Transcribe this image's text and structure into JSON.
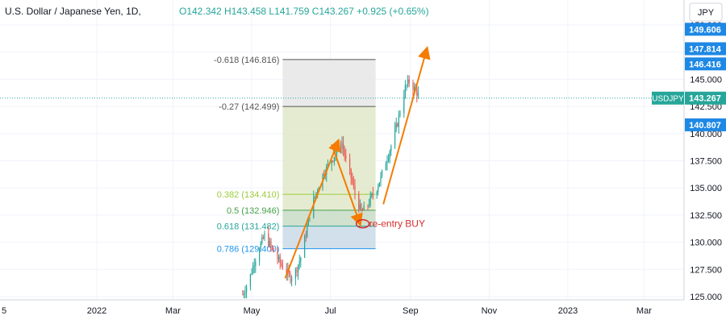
{
  "header": {
    "symbol_title": "U.S. Dollar / Japanese Yen, 1D,",
    "ohlc": "O142.342 H143.458 L141.759 C143.267 +0.925 (+0.65%)",
    "currency": "JPY"
  },
  "colors": {
    "up": "#26a69a",
    "down": "#ef5350",
    "arrow": "#f57c00",
    "fib_top_fill": "#e6e6e6",
    "fib_mid_fill": "#e0e8c8",
    "fib_low_fill": "#c8dcc6",
    "fib_bottom_fill": "#c9dbe6",
    "tag_blue": "#1e88e5",
    "tag_green": "#26a69a",
    "annotation_red": "#d32f2f"
  },
  "price_tags": [
    {
      "value": 149.606,
      "label": "149.606",
      "color": "#1e88e5"
    },
    {
      "value": 147.814,
      "label": "147.814",
      "color": "#1e88e5"
    },
    {
      "value": 146.416,
      "label": "146.416",
      "color": "#1e88e5"
    },
    {
      "value": 143.267,
      "label": "143.267",
      "color": "#26a69a",
      "badge": "USDJPY"
    },
    {
      "value": 140.807,
      "label": "140.807",
      "color": "#1e88e5"
    }
  ],
  "annotation": "re-entry BUY",
  "chart_data": {
    "type": "candlestick",
    "title": "U.S. Dollar / Japanese Yen, 1D,",
    "ylim": [
      124.7,
      152.3
    ],
    "y_ticks": [
      125.0,
      127.5,
      130.0,
      132.5,
      135.0,
      137.5,
      140.0,
      142.5,
      145.0,
      147.5,
      150.0
    ],
    "y_tick_labels": [
      "125.000",
      "127.500",
      "130.000",
      "132.500",
      "135.000",
      "137.500",
      "140.000",
      "142.500",
      "145.000",
      "147.500",
      "150.000"
    ],
    "x_range_days": [
      -75,
      455
    ],
    "x_ticks": [
      {
        "label": "5",
        "day": -83
      },
      {
        "label": "2022",
        "day": 0
      },
      {
        "label": "Mar",
        "day": 59
      },
      {
        "label": "May",
        "day": 120
      },
      {
        "label": "Jul",
        "day": 181
      },
      {
        "label": "Sep",
        "day": 243
      },
      {
        "label": "Nov",
        "day": 304
      },
      {
        "label": "2023",
        "day": 365
      },
      {
        "label": "Mar",
        "day": 424
      }
    ],
    "fibonacci": {
      "day_start": 144,
      "day_end": 216,
      "levels": [
        {
          "ratio": "-0.618",
          "price": 146.816,
          "label": "-0.618 (146.816)",
          "color": "#555555"
        },
        {
          "ratio": "-0.27",
          "price": 142.499,
          "label": "-0.27 (142.499)",
          "color": "#555555"
        },
        {
          "ratio": "0.382",
          "price": 134.41,
          "label": "0.382 (134.410)",
          "color": "#9ccc3a"
        },
        {
          "ratio": "0.5",
          "price": 132.946,
          "label": "0.5 (132.946)",
          "color": "#43a047"
        },
        {
          "ratio": "0.618",
          "price": 131.482,
          "label": "0.618 (131.482)",
          "color": "#26a69a"
        },
        {
          "ratio": "0.786",
          "price": 129.4,
          "label": "0.786 (129.400)",
          "color": "#2196f3"
        }
      ]
    },
    "candles_close_path": [
      [
        113,
        125.2
      ],
      [
        118,
        126.5
      ],
      [
        122,
        128.2
      ],
      [
        126,
        129.5
      ],
      [
        130,
        130.6
      ],
      [
        134,
        129.8
      ],
      [
        138,
        128.9
      ],
      [
        142,
        128.1
      ],
      [
        146,
        127.4
      ],
      [
        150,
        126.8
      ],
      [
        154,
        127.3
      ],
      [
        158,
        128.6
      ],
      [
        162,
        130.8
      ],
      [
        166,
        133.2
      ],
      [
        170,
        134.6
      ],
      [
        174,
        136.0
      ],
      [
        178,
        136.8
      ],
      [
        182,
        137.6
      ],
      [
        186,
        138.4
      ],
      [
        190,
        139.1
      ],
      [
        193,
        137.5
      ],
      [
        197,
        136.0
      ],
      [
        201,
        134.0
      ],
      [
        205,
        132.8
      ],
      [
        209,
        133.2
      ],
      [
        213,
        134.2
      ],
      [
        217,
        135.0
      ],
      [
        221,
        136.3
      ],
      [
        225,
        137.8
      ],
      [
        229,
        139.2
      ],
      [
        233,
        141.0
      ],
      [
        236,
        142.6
      ],
      [
        239,
        144.2
      ],
      [
        242,
        144.8
      ],
      [
        245,
        144.3
      ],
      [
        248,
        143.8
      ],
      [
        250,
        143.27
      ]
    ]
  }
}
